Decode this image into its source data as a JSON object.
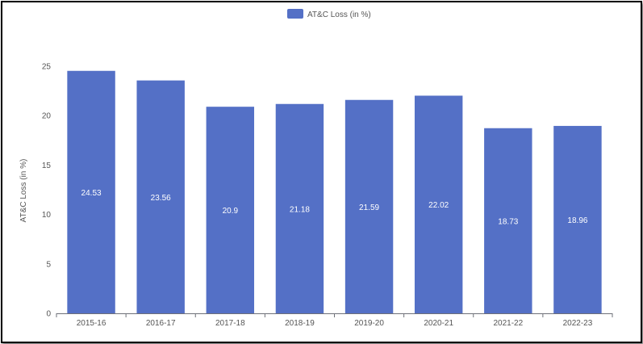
{
  "chart_data": {
    "type": "bar",
    "categories": [
      "2015-16",
      "2016-17",
      "2017-18",
      "2018-19",
      "2019-20",
      "2020-21",
      "2021-22",
      "2022-23"
    ],
    "series": [
      {
        "name": "AT&C Loss (in %)",
        "values": [
          24.53,
          23.56,
          20.9,
          21.18,
          21.59,
          22.02,
          18.73,
          18.96
        ],
        "value_labels": [
          "24.53",
          "23.56",
          "20.9",
          "21.18",
          "21.59",
          "22.02",
          "18.73",
          "18.96"
        ]
      }
    ],
    "title": "",
    "xlabel": "",
    "ylabel": "AT&C Loss (in %)",
    "ylim": [
      0,
      25
    ],
    "yticks": [
      "0",
      "5",
      "10",
      "15",
      "20",
      "25"
    ],
    "grid": false,
    "legend": "top-center",
    "colors": {
      "bar": "#5470c6",
      "axis": "#6e7079",
      "text": "#555555"
    }
  }
}
